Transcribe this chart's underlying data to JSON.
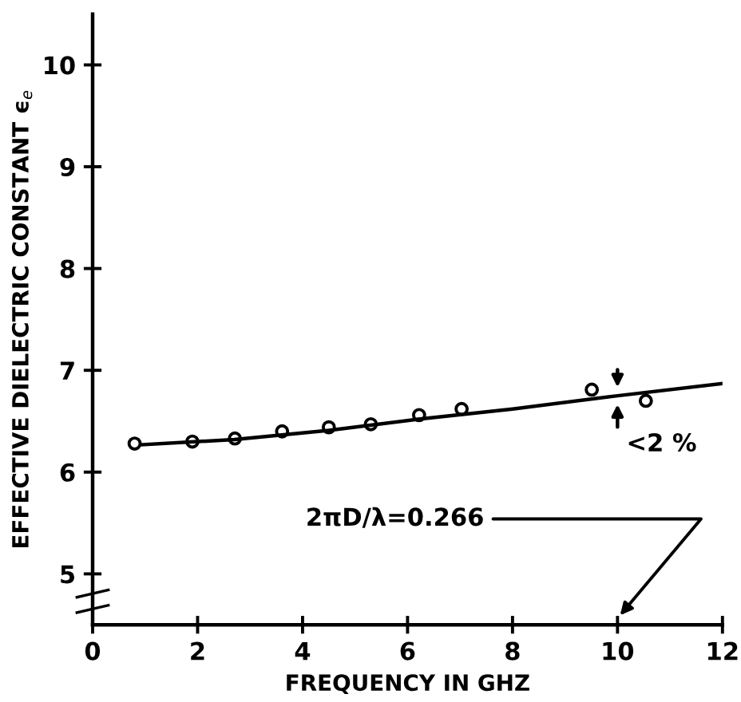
{
  "chart_data": {
    "type": "scatter",
    "xlabel": "FREQUENCY IN GHZ",
    "ylabel": "EFFECTIVE DIELECTRIC CONSTANT ϵ$_{e}$",
    "series": [
      {
        "color": "#000000",
        "marker": "circle",
        "x": [
          0.8,
          1.9,
          2.71,
          3.61,
          4.5,
          5.3,
          6.22,
          7.03,
          9.51,
          10.54
        ],
        "values": [
          6.28,
          6.3,
          6.33,
          6.4,
          6.44,
          6.47,
          6.56,
          6.62,
          6.81,
          6.7
        ]
      },
      {
        "type": "line",
        "color": "#000000",
        "marker": "none",
        "line_style": "solid",
        "x": [
          0.95,
          2.7,
          4.5,
          6.2,
          8,
          10,
          12
        ],
        "values": [
          6.27,
          6.32,
          6.41,
          6.52,
          6.62,
          6.75,
          6.87
        ]
      }
    ],
    "annotations": [
      {
        "text": "<2 %",
        "x": 10,
        "y": 6.75
      },
      "2πD/λ=0.266"
    ],
    "xlim": [
      0,
      12
    ],
    "xticks": [
      0,
      2,
      4,
      6,
      8,
      10,
      12
    ],
    "ylim": [
      4.5,
      10.5
    ],
    "yticks": [
      5,
      6,
      7,
      8,
      9,
      10
    ],
    "grid": false,
    "legend": false
  }
}
